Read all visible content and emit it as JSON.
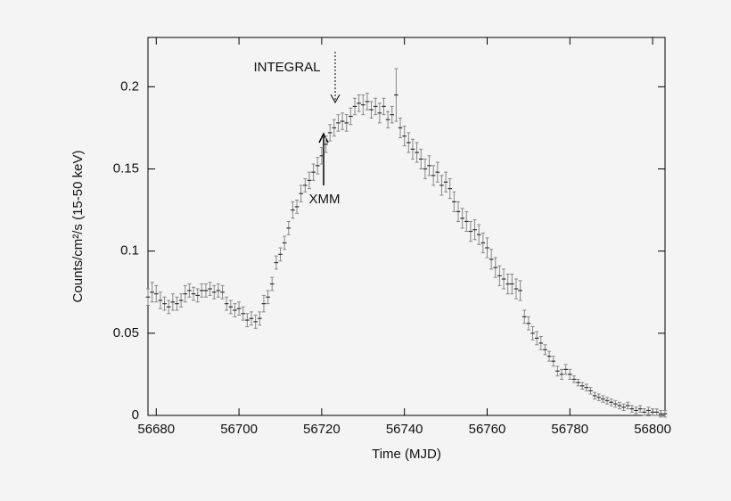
{
  "chart_data": {
    "type": "errorbar",
    "xlabel": "Time (MJD)",
    "ylabel": "Counts/cm²/s (15-50 keV)",
    "annotations": [
      "INTEGRAL",
      "XMM"
    ],
    "x": [
      56678,
      56679,
      56680,
      56681,
      56682,
      56683,
      56684,
      56685,
      56686,
      56687,
      56688,
      56689,
      56690,
      56691,
      56692,
      56693,
      56694,
      56695,
      56696,
      56697,
      56698,
      56699,
      56700,
      56701,
      56702,
      56703,
      56704,
      56705,
      56706,
      56707,
      56708,
      56709,
      56710,
      56711,
      56712,
      56713,
      56714,
      56715,
      56716,
      56717,
      56718,
      56719,
      56720,
      56721,
      56722,
      56723,
      56724,
      56725,
      56726,
      56727,
      56728,
      56729,
      56730,
      56731,
      56732,
      56733,
      56734,
      56735,
      56736,
      56737,
      56738,
      56739,
      56740,
      56741,
      56742,
      56743,
      56744,
      56745,
      56746,
      56747,
      56748,
      56749,
      56750,
      56751,
      56752,
      56753,
      56754,
      56755,
      56756,
      56757,
      56758,
      56759,
      56760,
      56761,
      56762,
      56763,
      56764,
      56765,
      56766,
      56767,
      56768,
      56769,
      56770,
      56771,
      56772,
      56773,
      56774,
      56775,
      56776,
      56777,
      56778,
      56779,
      56780,
      56781,
      56782,
      56783,
      56784,
      56785,
      56786,
      56787,
      56788,
      56789,
      56790,
      56791,
      56792,
      56793,
      56794,
      56795,
      56796,
      56797,
      56798,
      56799,
      56800,
      56801,
      56802,
      56803
    ],
    "values": [
      0.072,
      0.075,
      0.074,
      0.07,
      0.068,
      0.066,
      0.069,
      0.068,
      0.07,
      0.074,
      0.076,
      0.074,
      0.073,
      0.076,
      0.076,
      0.077,
      0.075,
      0.076,
      0.075,
      0.068,
      0.066,
      0.064,
      0.065,
      0.062,
      0.058,
      0.059,
      0.057,
      0.059,
      0.068,
      0.072,
      0.08,
      0.093,
      0.098,
      0.105,
      0.114,
      0.125,
      0.127,
      0.135,
      0.14,
      0.143,
      0.148,
      0.152,
      0.158,
      0.165,
      0.172,
      0.175,
      0.178,
      0.179,
      0.178,
      0.182,
      0.188,
      0.19,
      0.189,
      0.191,
      0.186,
      0.188,
      0.184,
      0.188,
      0.18,
      0.183,
      0.195,
      0.175,
      0.17,
      0.166,
      0.162,
      0.16,
      0.156,
      0.15,
      0.152,
      0.146,
      0.148,
      0.14,
      0.142,
      0.138,
      0.13,
      0.124,
      0.12,
      0.118,
      0.112,
      0.113,
      0.11,
      0.105,
      0.102,
      0.095,
      0.09,
      0.085,
      0.083,
      0.08,
      0.08,
      0.077,
      0.076,
      0.06,
      0.056,
      0.05,
      0.047,
      0.044,
      0.04,
      0.036,
      0.033,
      0.027,
      0.025,
      0.028,
      0.025,
      0.022,
      0.02,
      0.018,
      0.017,
      0.015,
      0.012,
      0.011,
      0.01,
      0.009,
      0.008,
      0.007,
      0.006,
      0.005,
      0.006,
      0.004,
      0.003,
      0.004,
      0.002,
      0.003,
      0.002,
      0.002,
      0.001,
      0.001
    ],
    "errors": [
      0.005,
      0.006,
      0.005,
      0.005,
      0.004,
      0.004,
      0.005,
      0.004,
      0.004,
      0.005,
      0.004,
      0.004,
      0.004,
      0.004,
      0.004,
      0.004,
      0.004,
      0.004,
      0.004,
      0.004,
      0.004,
      0.004,
      0.004,
      0.004,
      0.004,
      0.004,
      0.004,
      0.004,
      0.005,
      0.004,
      0.004,
      0.004,
      0.004,
      0.004,
      0.004,
      0.005,
      0.004,
      0.005,
      0.004,
      0.005,
      0.005,
      0.005,
      0.005,
      0.005,
      0.005,
      0.005,
      0.005,
      0.005,
      0.005,
      0.005,
      0.005,
      0.005,
      0.006,
      0.005,
      0.005,
      0.005,
      0.006,
      0.005,
      0.005,
      0.005,
      0.016,
      0.006,
      0.006,
      0.006,
      0.006,
      0.006,
      0.006,
      0.006,
      0.006,
      0.006,
      0.006,
      0.006,
      0.006,
      0.006,
      0.006,
      0.006,
      0.006,
      0.006,
      0.006,
      0.006,
      0.006,
      0.006,
      0.006,
      0.006,
      0.006,
      0.006,
      0.006,
      0.006,
      0.006,
      0.006,
      0.006,
      0.004,
      0.004,
      0.004,
      0.004,
      0.004,
      0.003,
      0.003,
      0.003,
      0.003,
      0.003,
      0.003,
      0.003,
      0.002,
      0.002,
      0.002,
      0.002,
      0.002,
      0.002,
      0.002,
      0.002,
      0.002,
      0.002,
      0.002,
      0.002,
      0.002,
      0.002,
      0.002,
      0.002,
      0.002,
      0.002,
      0.002,
      0.002,
      0.002,
      0.002,
      0.002
    ],
    "color": "#333333",
    "xlim": [
      56678,
      56803
    ],
    "ylim": [
      0,
      0.23
    ],
    "xticks": [
      56680,
      56700,
      56720,
      56740,
      56760,
      56780,
      56800
    ],
    "yticks": [
      0,
      0.05,
      0.1,
      0.15,
      0.2
    ]
  }
}
